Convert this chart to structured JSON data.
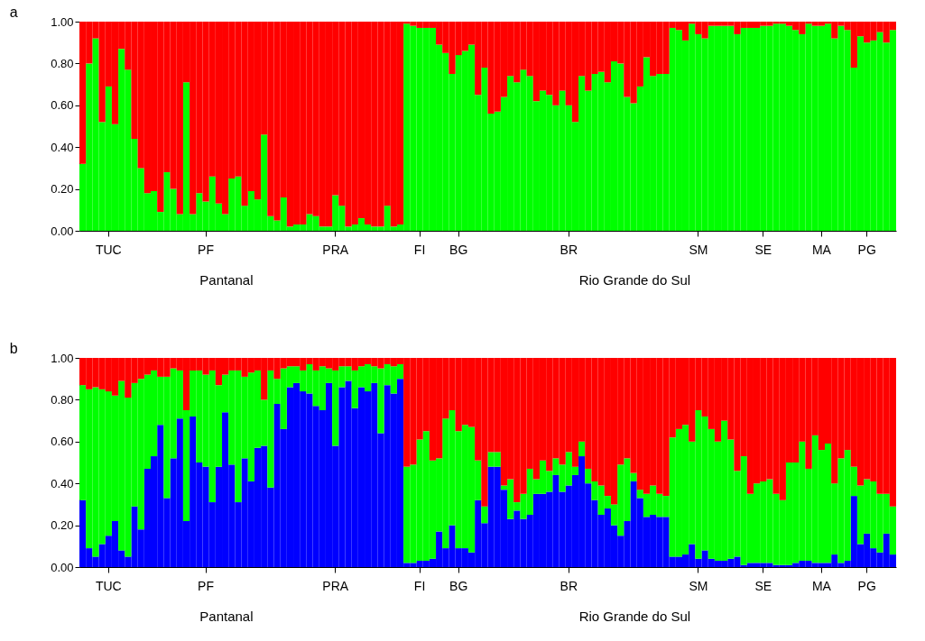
{
  "chart_data": [
    {
      "type": "bar",
      "title": "a",
      "stacked": true,
      "grid": false,
      "legend": false,
      "categories": [
        null,
        null,
        null,
        null,
        "TUC",
        null,
        null,
        null,
        null,
        null,
        null,
        null,
        null,
        null,
        null,
        null,
        null,
        null,
        null,
        "PF",
        null,
        null,
        null,
        null,
        null,
        null,
        null,
        null,
        null,
        null,
        null,
        null,
        null,
        null,
        null,
        null,
        null,
        null,
        null,
        "PRA",
        null,
        null,
        null,
        null,
        null,
        null,
        null,
        null,
        null,
        null,
        null,
        null,
        "FI",
        null,
        null,
        null,
        null,
        null,
        "BG",
        null,
        null,
        null,
        null,
        null,
        null,
        null,
        null,
        null,
        null,
        null,
        null,
        null,
        null,
        null,
        null,
        "BR",
        null,
        null,
        null,
        null,
        null,
        null,
        null,
        null,
        null,
        null,
        null,
        null,
        null,
        null,
        null,
        null,
        null,
        null,
        null,
        "SM",
        null,
        null,
        null,
        null,
        null,
        null,
        null,
        null,
        null,
        "SE",
        null,
        null,
        null,
        null,
        null,
        null,
        null,
        null,
        "MA",
        null,
        null,
        null,
        null,
        null,
        null,
        "PG",
        null,
        null,
        null,
        null
      ],
      "ylim": [
        0,
        1
      ],
      "yticks": [
        {
          "value": 0,
          "label": "0.00"
        },
        {
          "value": 0.2,
          "label": "0.20"
        },
        {
          "value": 0.4,
          "label": "0.40"
        },
        {
          "value": 0.6,
          "label": "0.60"
        },
        {
          "value": 0.8,
          "label": "0.80"
        },
        {
          "value": 1,
          "label": "1.00"
        }
      ],
      "annotations": [
        "Pantanal",
        "Rio Grande do Sul"
      ],
      "series": [
        {
          "color": "#00ff00",
          "values": [
            0.32,
            0.8,
            0.92,
            0.52,
            0.69,
            0.51,
            0.87,
            0.77,
            0.44,
            0.3,
            0.18,
            0.19,
            0.09,
            0.28,
            0.2,
            0.08,
            0.71,
            0.08,
            0.18,
            0.14,
            0.26,
            0.13,
            0.08,
            0.25,
            0.26,
            0.12,
            0.19,
            0.15,
            0.46,
            0.07,
            0.05,
            0.16,
            0.02,
            0.03,
            0.03,
            0.08,
            0.07,
            0.02,
            0.02,
            0.17,
            0.12,
            0.02,
            0.03,
            0.06,
            0.03,
            0.02,
            0.02,
            0.12,
            0.02,
            0.03,
            0.99,
            0.98,
            0.97,
            0.97,
            0.97,
            0.89,
            0.85,
            0.75,
            0.84,
            0.86,
            0.89,
            0.65,
            0.78,
            0.56,
            0.57,
            0.64,
            0.74,
            0.71,
            0.77,
            0.74,
            0.62,
            0.67,
            0.65,
            0.6,
            0.67,
            0.6,
            0.52,
            0.74,
            0.67,
            0.75,
            0.76,
            0.71,
            0.81,
            0.8,
            0.64,
            0.61,
            0.69,
            0.83,
            0.74,
            0.75,
            0.75,
            0.97,
            0.96,
            0.91,
            0.99,
            0.94,
            0.92,
            0.98,
            0.98,
            0.98,
            0.98,
            0.94,
            0.97,
            0.97,
            0.97,
            0.98,
            0.98,
            0.99,
            0.99,
            0.98,
            0.96,
            0.94,
            0.99,
            0.98,
            0.98,
            0.99,
            0.92,
            0.98,
            0.96,
            0.78,
            0.93,
            0.9,
            0.91,
            0.95,
            0.9,
            0.96
          ]
        },
        {
          "color": "#ff0000",
          "values": [
            0.68,
            0.2,
            0.08,
            0.48,
            0.31,
            0.49,
            0.13,
            0.23,
            0.56,
            0.7,
            0.82,
            0.81,
            0.91,
            0.72,
            0.8,
            0.92,
            0.29,
            0.92,
            0.82,
            0.86,
            0.74,
            0.87,
            0.92,
            0.75,
            0.74,
            0.88,
            0.81,
            0.85,
            0.54,
            0.93,
            0.95,
            0.84,
            0.98,
            0.97,
            0.97,
            0.92,
            0.93,
            0.98,
            0.98,
            0.83,
            0.88,
            0.98,
            0.97,
            0.94,
            0.97,
            0.98,
            0.98,
            0.88,
            0.98,
            0.97,
            0.01,
            0.02,
            0.03,
            0.03,
            0.03,
            0.11,
            0.15,
            0.25,
            0.16,
            0.14,
            0.11,
            0.35,
            0.22,
            0.44,
            0.43,
            0.36,
            0.26,
            0.29,
            0.23,
            0.26,
            0.38,
            0.33,
            0.35,
            0.4,
            0.33,
            0.4,
            0.48,
            0.26,
            0.33,
            0.25,
            0.24,
            0.29,
            0.19,
            0.2,
            0.36,
            0.39,
            0.31,
            0.17,
            0.26,
            0.25,
            0.25,
            0.03,
            0.04,
            0.09,
            0.01,
            0.06,
            0.08,
            0.02,
            0.02,
            0.02,
            0.02,
            0.06,
            0.03,
            0.03,
            0.03,
            0.02,
            0.02,
            0.01,
            0.01,
            0.02,
            0.04,
            0.06,
            0.01,
            0.02,
            0.02,
            0.01,
            0.08,
            0.02,
            0.04,
            0.22,
            0.07,
            0.1,
            0.09,
            0.05,
            0.1,
            0.04
          ]
        }
      ]
    },
    {
      "type": "bar",
      "title": "b",
      "stacked": true,
      "grid": false,
      "legend": false,
      "categories": [
        null,
        null,
        null,
        null,
        "TUC",
        null,
        null,
        null,
        null,
        null,
        null,
        null,
        null,
        null,
        null,
        null,
        null,
        null,
        null,
        "PF",
        null,
        null,
        null,
        null,
        null,
        null,
        null,
        null,
        null,
        null,
        null,
        null,
        null,
        null,
        null,
        null,
        null,
        null,
        null,
        "PRA",
        null,
        null,
        null,
        null,
        null,
        null,
        null,
        null,
        null,
        null,
        null,
        null,
        "FI",
        null,
        null,
        null,
        null,
        null,
        "BG",
        null,
        null,
        null,
        null,
        null,
        null,
        null,
        null,
        null,
        null,
        null,
        null,
        null,
        null,
        null,
        null,
        "BR",
        null,
        null,
        null,
        null,
        null,
        null,
        null,
        null,
        null,
        null,
        null,
        null,
        null,
        null,
        null,
        null,
        null,
        null,
        null,
        "SM",
        null,
        null,
        null,
        null,
        null,
        null,
        null,
        null,
        null,
        "SE",
        null,
        null,
        null,
        null,
        null,
        null,
        null,
        null,
        "MA",
        null,
        null,
        null,
        null,
        null,
        null,
        "PG",
        null,
        null,
        null,
        null
      ],
      "ylim": [
        0,
        1
      ],
      "yticks": [
        {
          "value": 0,
          "label": "0.00"
        },
        {
          "value": 0.2,
          "label": "0.20"
        },
        {
          "value": 0.4,
          "label": "0.40"
        },
        {
          "value": 0.6,
          "label": "0.60"
        },
        {
          "value": 0.8,
          "label": "0.80"
        },
        {
          "value": 1,
          "label": "1.00"
        }
      ],
      "annotations": [
        "Pantanal",
        "Rio Grande do Sul"
      ],
      "series": [
        {
          "color": "#0000ff",
          "values": [
            0.32,
            0.09,
            0.05,
            0.11,
            0.15,
            0.22,
            0.08,
            0.05,
            0.29,
            0.18,
            0.47,
            0.53,
            0.68,
            0.33,
            0.52,
            0.71,
            0.22,
            0.72,
            0.5,
            0.48,
            0.31,
            0.48,
            0.74,
            0.49,
            0.31,
            0.52,
            0.41,
            0.57,
            0.58,
            0.38,
            0.78,
            0.66,
            0.86,
            0.88,
            0.84,
            0.83,
            0.77,
            0.75,
            0.88,
            0.58,
            0.86,
            0.89,
            0.76,
            0.86,
            0.84,
            0.88,
            0.64,
            0.87,
            0.83,
            0.9,
            0.02,
            0.02,
            0.03,
            0.03,
            0.04,
            0.17,
            0.09,
            0.2,
            0.09,
            0.09,
            0.07,
            0.32,
            0.21,
            0.48,
            0.48,
            0.37,
            0.23,
            0.27,
            0.23,
            0.25,
            0.35,
            0.35,
            0.36,
            0.44,
            0.36,
            0.39,
            0.44,
            0.53,
            0.4,
            0.32,
            0.25,
            0.28,
            0.2,
            0.15,
            0.22,
            0.41,
            0.33,
            0.24,
            0.25,
            0.24,
            0.24,
            0.05,
            0.05,
            0.06,
            0.11,
            0.04,
            0.08,
            0.04,
            0.03,
            0.03,
            0.04,
            0.05,
            0.01,
            0.02,
            0.02,
            0.02,
            0.02,
            0.01,
            0.01,
            0.01,
            0.02,
            0.03,
            0.03,
            0.02,
            0.02,
            0.02,
            0.06,
            0.02,
            0.03,
            0.34,
            0.11,
            0.16,
            0.09,
            0.07,
            0.16,
            0.06
          ]
        },
        {
          "color": "#00ff00",
          "values": [
            0.55,
            0.76,
            0.81,
            0.74,
            0.69,
            0.6,
            0.81,
            0.76,
            0.59,
            0.72,
            0.45,
            0.41,
            0.23,
            0.58,
            0.43,
            0.23,
            0.53,
            0.22,
            0.44,
            0.44,
            0.63,
            0.39,
            0.18,
            0.45,
            0.63,
            0.39,
            0.52,
            0.37,
            0.22,
            0.56,
            0.12,
            0.29,
            0.1,
            0.08,
            0.1,
            0.14,
            0.17,
            0.21,
            0.07,
            0.36,
            0.1,
            0.07,
            0.18,
            0.1,
            0.13,
            0.08,
            0.31,
            0.1,
            0.13,
            0.07,
            0.46,
            0.47,
            0.58,
            0.62,
            0.47,
            0.35,
            0.62,
            0.55,
            0.56,
            0.59,
            0.6,
            0.19,
            0.08,
            0.07,
            0.07,
            0.02,
            0.19,
            0.04,
            0.12,
            0.22,
            0.07,
            0.16,
            0.1,
            0.08,
            0.13,
            0.16,
            0.04,
            0.07,
            0.07,
            0.09,
            0.14,
            0.06,
            0.1,
            0.34,
            0.3,
            0.04,
            0.04,
            0.11,
            0.14,
            0.11,
            0.1,
            0.57,
            0.61,
            0.62,
            0.49,
            0.71,
            0.64,
            0.62,
            0.57,
            0.67,
            0.57,
            0.41,
            0.52,
            0.33,
            0.38,
            0.39,
            0.4,
            0.34,
            0.31,
            0.49,
            0.48,
            0.57,
            0.44,
            0.61,
            0.54,
            0.57,
            0.34,
            0.5,
            0.53,
            0.14,
            0.28,
            0.26,
            0.32,
            0.28,
            0.19,
            0.23
          ]
        },
        {
          "color": "#ff0000",
          "values": [
            0.13,
            0.15,
            0.14,
            0.15,
            0.16,
            0.18,
            0.11,
            0.19,
            0.12,
            0.1,
            0.08,
            0.06,
            0.09,
            0.09,
            0.05,
            0.06,
            0.25,
            0.06,
            0.06,
            0.08,
            0.06,
            0.13,
            0.08,
            0.06,
            0.06,
            0.09,
            0.07,
            0.06,
            0.2,
            0.06,
            0.1,
            0.05,
            0.04,
            0.04,
            0.06,
            0.03,
            0.06,
            0.04,
            0.05,
            0.06,
            0.04,
            0.04,
            0.06,
            0.04,
            0.03,
            0.04,
            0.05,
            0.03,
            0.04,
            0.03,
            0.52,
            0.51,
            0.39,
            0.35,
            0.49,
            0.48,
            0.29,
            0.25,
            0.35,
            0.32,
            0.33,
            0.49,
            0.71,
            0.45,
            0.45,
            0.61,
            0.58,
            0.69,
            0.65,
            0.53,
            0.58,
            0.49,
            0.54,
            0.48,
            0.51,
            0.45,
            0.52,
            0.4,
            0.53,
            0.59,
            0.61,
            0.66,
            0.7,
            0.51,
            0.48,
            0.55,
            0.63,
            0.65,
            0.61,
            0.65,
            0.66,
            0.38,
            0.34,
            0.32,
            0.4,
            0.25,
            0.28,
            0.34,
            0.4,
            0.3,
            0.39,
            0.54,
            0.47,
            0.65,
            0.6,
            0.59,
            0.58,
            0.65,
            0.68,
            0.5,
            0.5,
            0.4,
            0.53,
            0.37,
            0.44,
            0.41,
            0.6,
            0.48,
            0.44,
            0.52,
            0.61,
            0.58,
            0.59,
            0.65,
            0.65,
            0.71
          ]
        }
      ]
    }
  ]
}
